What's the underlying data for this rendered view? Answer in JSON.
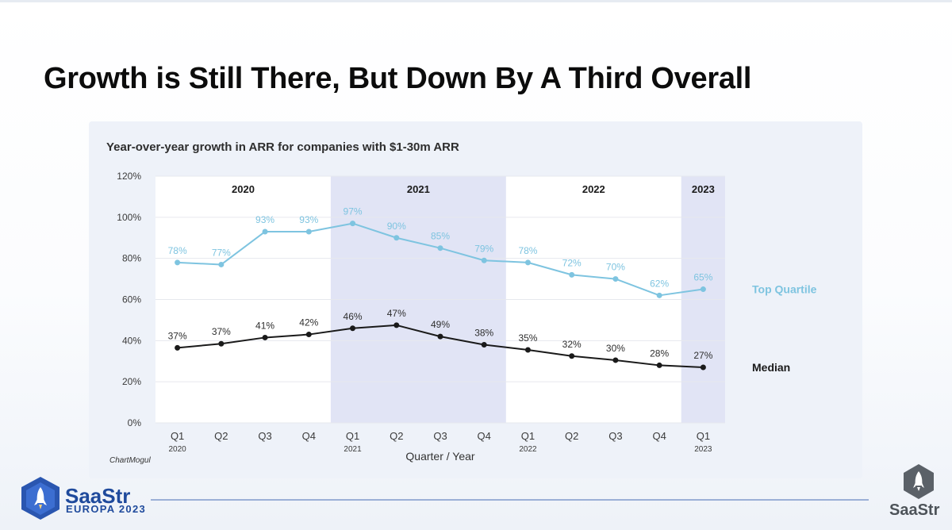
{
  "slide": {
    "title": "Growth is Still There, But Down By A Third Overall"
  },
  "brand": {
    "name": "SaaStr",
    "event": "EUROPA 2023",
    "corner_name": "SaaStr",
    "colors": {
      "primary": "#1f4a9c",
      "corner": "#4d5359"
    },
    "icons": [
      "rocket-icon"
    ]
  },
  "chart_data": {
    "type": "line",
    "title": "Year-over-year growth in ARR for companies with $1-30m ARR",
    "xlabel": "Quarter / Year",
    "ylabel": "",
    "source": "ChartMogul",
    "ylim": [
      0,
      120
    ],
    "yticks": [
      "0%",
      "20%",
      "40%",
      "60%",
      "80%",
      "100%",
      "120%"
    ],
    "ytick_values": [
      0,
      20,
      40,
      60,
      80,
      100,
      120
    ],
    "grid": true,
    "categories": [
      "Q1",
      "Q2",
      "Q3",
      "Q4",
      "Q1",
      "Q2",
      "Q3",
      "Q4",
      "Q1",
      "Q2",
      "Q3",
      "Q4",
      "Q1"
    ],
    "category_years": [
      "2020",
      "",
      "",
      "",
      "2021",
      "",
      "",
      "",
      "2022",
      "",
      "",
      "",
      "2023"
    ],
    "year_bands": [
      {
        "label": "2020",
        "start": 0,
        "end": 3,
        "shaded": false
      },
      {
        "label": "2021",
        "start": 4,
        "end": 7,
        "shaded": true
      },
      {
        "label": "2022",
        "start": 8,
        "end": 11,
        "shaded": false
      },
      {
        "label": "2023",
        "start": 12,
        "end": 12,
        "shaded": true
      }
    ],
    "series": [
      {
        "name": "Top Quartile",
        "color": "#7ec4e0",
        "values": [
          78,
          77,
          93,
          93,
          97,
          90,
          85,
          79,
          78,
          72,
          70,
          62,
          65
        ],
        "labels": [
          "78%",
          "77%",
          "93%",
          "93%",
          "97%",
          "90%",
          "85%",
          "79%",
          "78%",
          "72%",
          "70%",
          "62%",
          "65%"
        ]
      },
      {
        "name": "Median",
        "color": "#1a1a1a",
        "values": [
          37,
          37,
          41,
          42,
          46,
          47,
          49,
          38,
          35,
          32,
          30,
          28,
          27
        ],
        "positions": [
          36.5,
          38.5,
          41.5,
          43,
          46,
          47.5,
          42,
          38,
          35.5,
          32.5,
          30.5,
          28,
          27
        ],
        "labels": [
          "37%",
          "37%",
          "41%",
          "42%",
          "46%",
          "47%",
          "49%",
          "38%",
          "35%",
          "32%",
          "30%",
          "28%",
          "27%"
        ]
      }
    ],
    "colors": {
      "shaded_band": "#e1e4f5",
      "plot_bg": "#ffffff",
      "grid": "#e6e8ee",
      "text": "#3a3a3a"
    }
  }
}
